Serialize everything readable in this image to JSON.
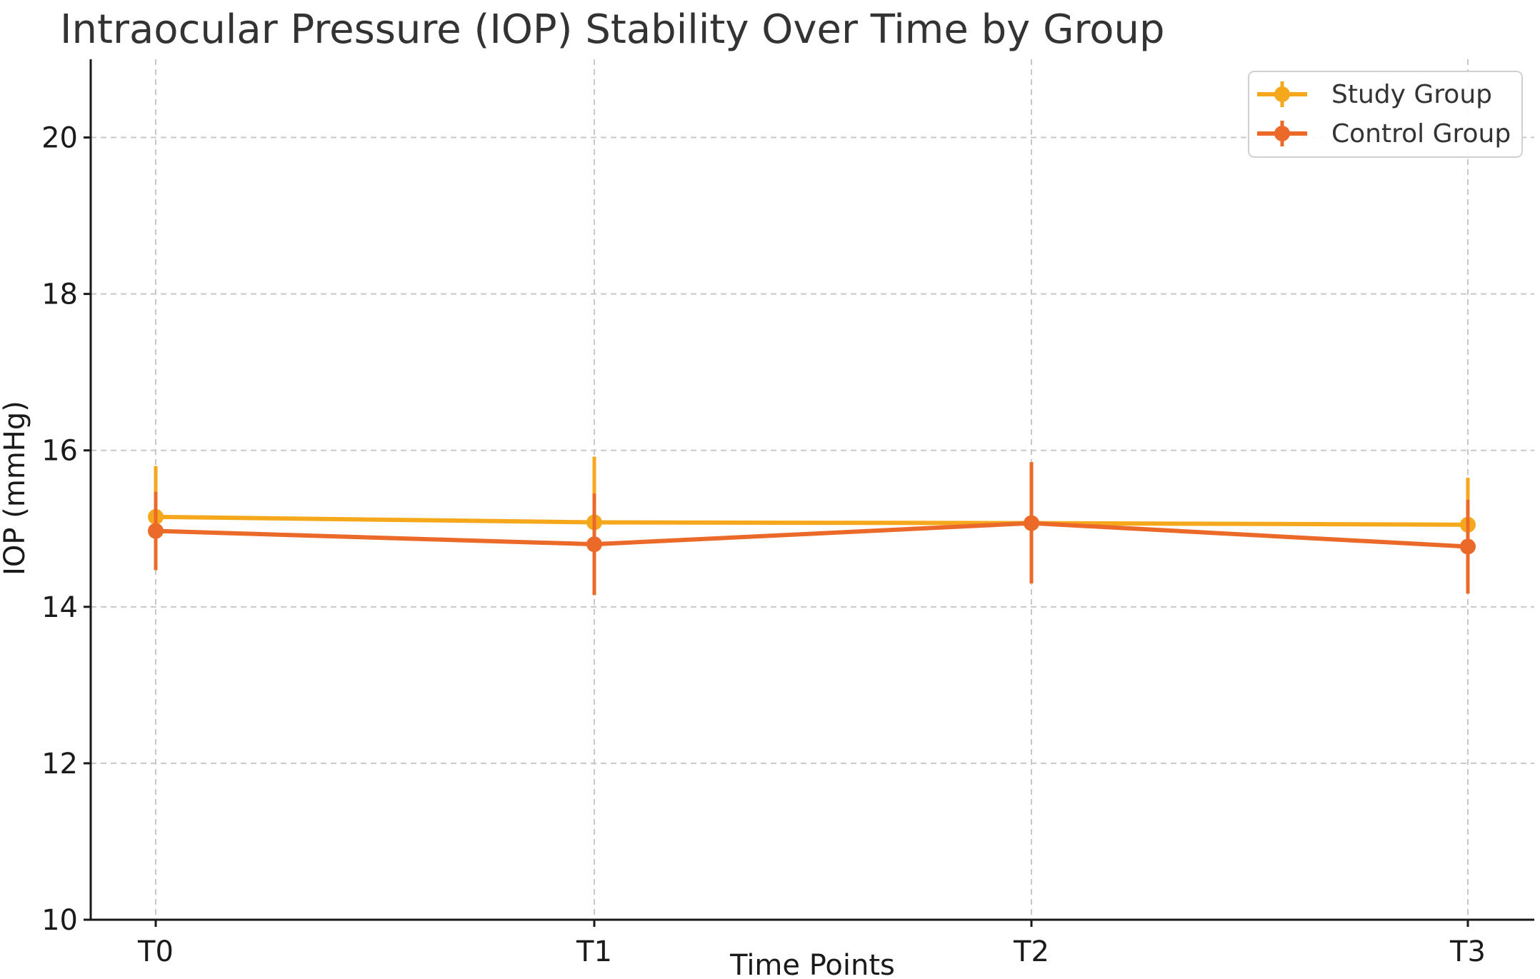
{
  "chart_data": {
    "type": "line",
    "title": "Intraocular Pressure (IOP) Stability Over Time by Group",
    "xlabel": "Time Points",
    "ylabel": "IOP (mmHg)",
    "categories": [
      "T0",
      "T1",
      "T2",
      "T3"
    ],
    "ylim": [
      10,
      21
    ],
    "yticks": [
      "10",
      "12",
      "14",
      "16",
      "18",
      "20"
    ],
    "grid": true,
    "legend_position": "top-right",
    "series": [
      {
        "name": "Study Group",
        "color": "#F5A81C",
        "values": [
          15.15,
          15.08,
          15.07,
          15.05
        ],
        "error_low": [
          14.5,
          14.25,
          14.35,
          14.45
        ],
        "error_high": [
          15.8,
          15.92,
          15.78,
          15.65
        ],
        "marker": "circle"
      },
      {
        "name": "Control Group",
        "color": "#EB6A2A",
        "values": [
          14.97,
          14.8,
          15.07,
          14.77
        ],
        "error_low": [
          14.47,
          14.15,
          14.3,
          14.17
        ],
        "error_high": [
          15.47,
          15.45,
          15.85,
          15.37
        ],
        "marker": "circle"
      }
    ]
  }
}
